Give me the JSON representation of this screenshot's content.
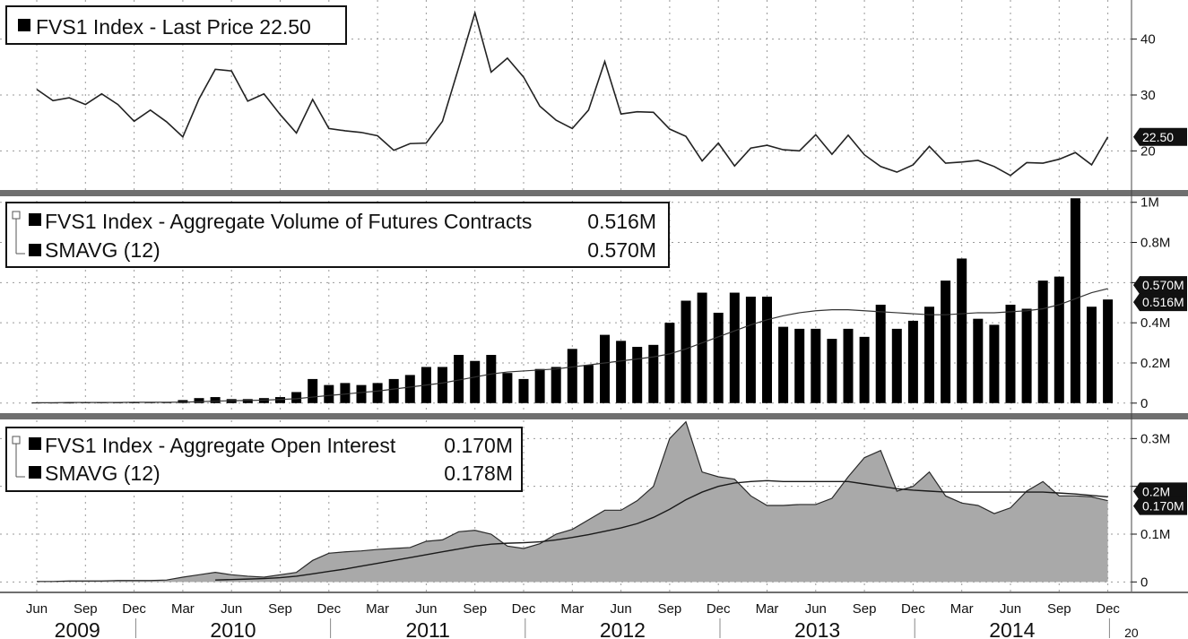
{
  "chart_data": [
    {
      "type": "line",
      "legend": [
        "FVS1 Index - Last Price 22.50"
      ],
      "last_value_badge": "22.50",
      "ylim": [
        13,
        47
      ],
      "yticks": [
        20,
        30,
        40
      ],
      "ytick_labels": [
        "20",
        "30",
        "40"
      ],
      "x_months": 67,
      "series": [
        {
          "values": [
            31,
            29,
            29.5,
            28.3,
            30.2,
            28.3,
            25.3,
            27.3,
            25.2,
            22.5,
            29.3,
            34.6,
            34.3,
            28.9,
            30.2,
            26.5,
            23.2,
            29.2,
            24,
            23.6,
            23.3,
            22.7,
            20.1,
            21.3,
            21.4,
            25.3,
            34.9,
            44.7,
            34.1,
            36.6,
            33.2,
            28,
            25.5,
            24,
            27.3,
            36,
            26.6,
            27,
            26.9,
            23.9,
            22.6,
            18.2,
            21.4,
            17.3,
            20.5,
            21,
            20.2,
            20,
            22.9,
            19.4,
            22.8,
            19.3,
            17.2,
            16.2,
            17.5,
            20.8,
            17.8,
            18,
            18.3,
            17.2,
            15.6,
            17.9,
            17.8,
            18.5,
            19.7,
            17.5,
            22.5
          ]
        }
      ]
    },
    {
      "type": "bar",
      "legend": [
        "FVS1 Index - Aggregate Volume of Futures Contracts",
        "SMAVG (12)"
      ],
      "legend_values": [
        "0.516M",
        "0.570M"
      ],
      "last_value_badges": [
        "0.570M",
        "0.516M"
      ],
      "ylim": [
        -0.05,
        1.03
      ],
      "yticks": [
        0,
        0.2,
        0.4,
        0.6,
        0.8,
        1.0
      ],
      "ytick_labels": [
        "0",
        "0.2M",
        "0.4M",
        "",
        "0.8M",
        "1M"
      ],
      "unit": "M",
      "series": [
        {
          "name": "FVS1 Index - Aggregate Volume of Futures Contracts",
          "values": [
            0.003,
            0.003,
            0.003,
            0.004,
            0.004,
            0.004,
            0.004,
            0.005,
            0.005,
            0.015,
            0.025,
            0.03,
            0.02,
            0.02,
            0.025,
            0.03,
            0.055,
            0.12,
            0.09,
            0.1,
            0.09,
            0.1,
            0.12,
            0.14,
            0.18,
            0.18,
            0.24,
            0.21,
            0.24,
            0.15,
            0.12,
            0.17,
            0.18,
            0.27,
            0.19,
            0.34,
            0.31,
            0.28,
            0.29,
            0.4,
            0.51,
            0.55,
            0.45,
            0.55,
            0.53,
            0.53,
            0.38,
            0.37,
            0.37,
            0.32,
            0.37,
            0.33,
            0.49,
            0.37,
            0.41,
            0.48,
            0.61,
            0.72,
            0.42,
            0.39,
            0.49,
            0.47,
            0.61,
            0.63,
            1.02,
            0.48,
            0.516
          ]
        },
        {
          "name": "SMAVG (12)",
          "values": [
            0.002,
            0.002,
            0.003,
            0.003,
            0.003,
            0.003,
            0.004,
            0.004,
            0.004,
            0.005,
            0.007,
            0.01,
            0.012,
            0.013,
            0.015,
            0.018,
            0.022,
            0.03,
            0.038,
            0.045,
            0.053,
            0.06,
            0.07,
            0.08,
            0.09,
            0.1,
            0.115,
            0.13,
            0.145,
            0.155,
            0.16,
            0.165,
            0.17,
            0.18,
            0.19,
            0.2,
            0.21,
            0.22,
            0.23,
            0.245,
            0.27,
            0.3,
            0.33,
            0.36,
            0.39,
            0.415,
            0.435,
            0.45,
            0.46,
            0.465,
            0.465,
            0.46,
            0.455,
            0.45,
            0.445,
            0.44,
            0.44,
            0.445,
            0.45,
            0.45,
            0.455,
            0.46,
            0.47,
            0.49,
            0.52,
            0.55,
            0.57
          ]
        }
      ]
    },
    {
      "type": "area",
      "legend": [
        "FVS1 Index - Aggregate Open Interest",
        "SMAVG (12)"
      ],
      "legend_values": [
        "0.170M",
        "0.178M"
      ],
      "last_value_badges": [
        "0.2M",
        "0.170M"
      ],
      "ylim": [
        -0.02,
        0.34
      ],
      "yticks": [
        0,
        0.1,
        0.2,
        0.3
      ],
      "ytick_labels": [
        "0",
        "0.1M",
        "",
        "0.3M"
      ],
      "unit": "M",
      "series": [
        {
          "name": "FVS1 Index - Aggregate Open Interest",
          "values": [
            0.001,
            0.001,
            0.002,
            0.002,
            0.002,
            0.003,
            0.003,
            0.003,
            0.004,
            0.01,
            0.015,
            0.02,
            0.015,
            0.012,
            0.01,
            0.015,
            0.02,
            0.045,
            0.06,
            0.063,
            0.065,
            0.068,
            0.07,
            0.072,
            0.085,
            0.088,
            0.105,
            0.108,
            0.1,
            0.075,
            0.07,
            0.08,
            0.1,
            0.11,
            0.13,
            0.15,
            0.15,
            0.17,
            0.2,
            0.3,
            0.335,
            0.23,
            0.22,
            0.215,
            0.18,
            0.16,
            0.16,
            0.162,
            0.162,
            0.175,
            0.22,
            0.26,
            0.275,
            0.19,
            0.2,
            0.23,
            0.18,
            0.165,
            0.16,
            0.143,
            0.155,
            0.19,
            0.21,
            0.18,
            0.18,
            0.178,
            0.17
          ]
        },
        {
          "name": "SMAVG (12)",
          "values": [
            null,
            null,
            null,
            null,
            null,
            null,
            null,
            null,
            null,
            null,
            null,
            0.004,
            0.005,
            0.006,
            0.007,
            0.009,
            0.012,
            0.017,
            0.022,
            0.027,
            0.033,
            0.039,
            0.045,
            0.051,
            0.057,
            0.063,
            0.069,
            0.075,
            0.079,
            0.081,
            0.082,
            0.084,
            0.088,
            0.093,
            0.099,
            0.106,
            0.113,
            0.122,
            0.135,
            0.152,
            0.172,
            0.188,
            0.2,
            0.207,
            0.21,
            0.212,
            0.21,
            0.21,
            0.21,
            0.21,
            0.21,
            0.205,
            0.2,
            0.195,
            0.192,
            0.19,
            0.188,
            0.188,
            0.188,
            0.188,
            0.188,
            0.188,
            0.188,
            0.186,
            0.184,
            0.181,
            0.178
          ]
        }
      ]
    }
  ],
  "x_axis": {
    "month_labels": [
      "Jun",
      "Sep",
      "Dec",
      "Mar",
      "Jun",
      "Sep",
      "Dec",
      "Mar",
      "Jun",
      "Sep",
      "Dec",
      "Mar",
      "Jun",
      "Sep",
      "Dec",
      "Mar",
      "Jun",
      "Sep",
      "Dec",
      "Mar",
      "Jun",
      "Sep",
      "Dec"
    ],
    "year_labels": [
      "2009",
      "2010",
      "2011",
      "2012",
      "2013",
      "2014",
      "20"
    ]
  },
  "colors": {
    "line": "#222222",
    "bar": "#000000",
    "area_fill": "#a9a9a9",
    "area_edge": "#2a2a2a",
    "badge": "#111111",
    "separator": "#6f6f6f"
  }
}
